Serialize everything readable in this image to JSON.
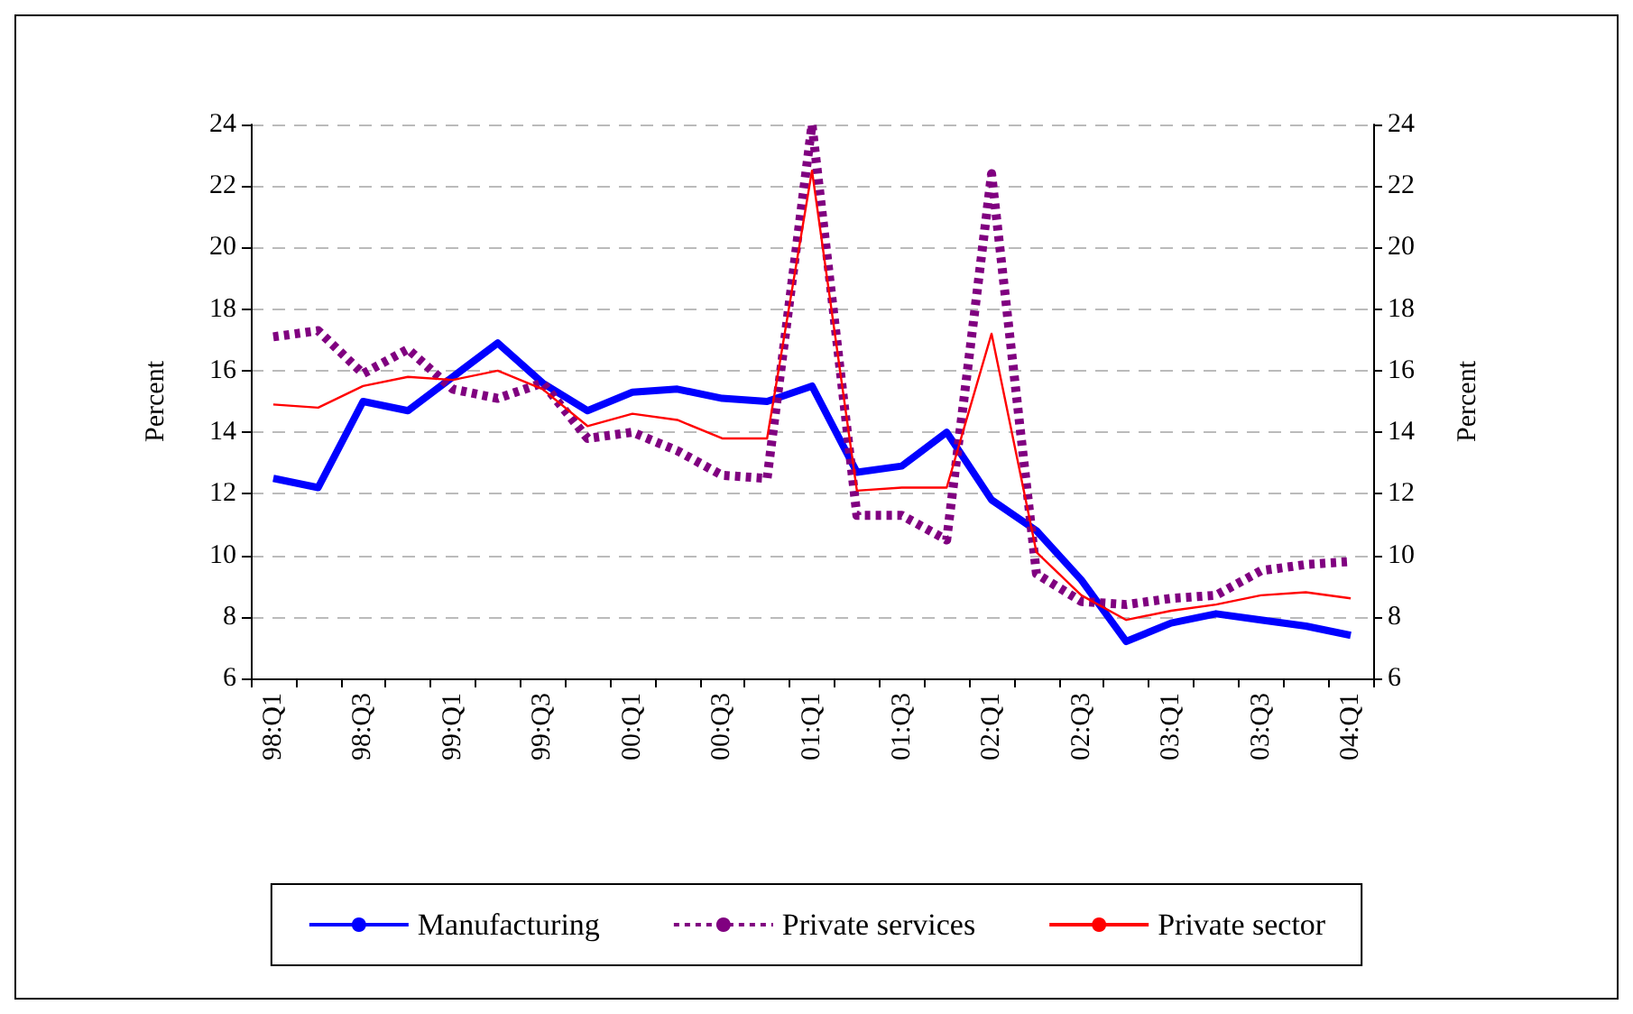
{
  "chart_data": {
    "type": "line",
    "ylabel": "Percent",
    "y2label": "Percent",
    "categories": [
      "98:Q1",
      null,
      "98:Q3",
      null,
      "99:Q1",
      null,
      "99:Q3",
      null,
      "00:Q1",
      null,
      "00:Q3",
      null,
      "01:Q1",
      null,
      "01:Q3",
      null,
      "02:Q1",
      null,
      "02:Q3",
      null,
      "03:Q1",
      null,
      "03:Q3",
      null,
      "04:Q1"
    ],
    "series": [
      {
        "name": "Manufacturing",
        "color": "#0000ff",
        "line_style": "solid",
        "values": [
          12.5,
          12.2,
          15.0,
          14.7,
          15.8,
          16.9,
          15.6,
          14.7,
          15.3,
          15.4,
          15.1,
          15.0,
          15.5,
          12.7,
          12.9,
          14.0,
          11.8,
          10.8,
          9.2,
          7.2,
          7.8,
          8.1,
          7.9,
          7.7,
          7.4
        ]
      },
      {
        "name": "Private services",
        "color": "#800080",
        "line_style": "dashed",
        "values": [
          17.1,
          17.3,
          15.9,
          16.7,
          15.4,
          15.1,
          15.6,
          13.8,
          14.0,
          13.4,
          12.6,
          12.5,
          24.0,
          11.3,
          11.3,
          10.5,
          22.4,
          9.4,
          8.5,
          8.4,
          8.6,
          8.7,
          9.5,
          9.7,
          9.8
        ]
      },
      {
        "name": "Private sector",
        "color": "#ff0000",
        "line_style": "solid",
        "values": [
          14.9,
          14.8,
          15.5,
          15.8,
          15.7,
          16.0,
          15.4,
          14.2,
          14.6,
          14.4,
          13.8,
          13.8,
          22.5,
          12.1,
          12.2,
          12.2,
          17.2,
          10.1,
          8.7,
          7.9,
          8.2,
          8.4,
          8.7,
          8.8,
          8.6
        ]
      }
    ],
    "ylim": [
      6,
      24
    ],
    "yticks": [
      6,
      8,
      10,
      12,
      14,
      16,
      18,
      20,
      22,
      24
    ],
    "y2lim": [
      6,
      24
    ],
    "y2ticks": [
      6,
      8,
      10,
      12,
      14,
      16,
      18,
      20,
      22,
      24
    ],
    "grid": "y",
    "legend": "bottom",
    "marker": "none"
  }
}
